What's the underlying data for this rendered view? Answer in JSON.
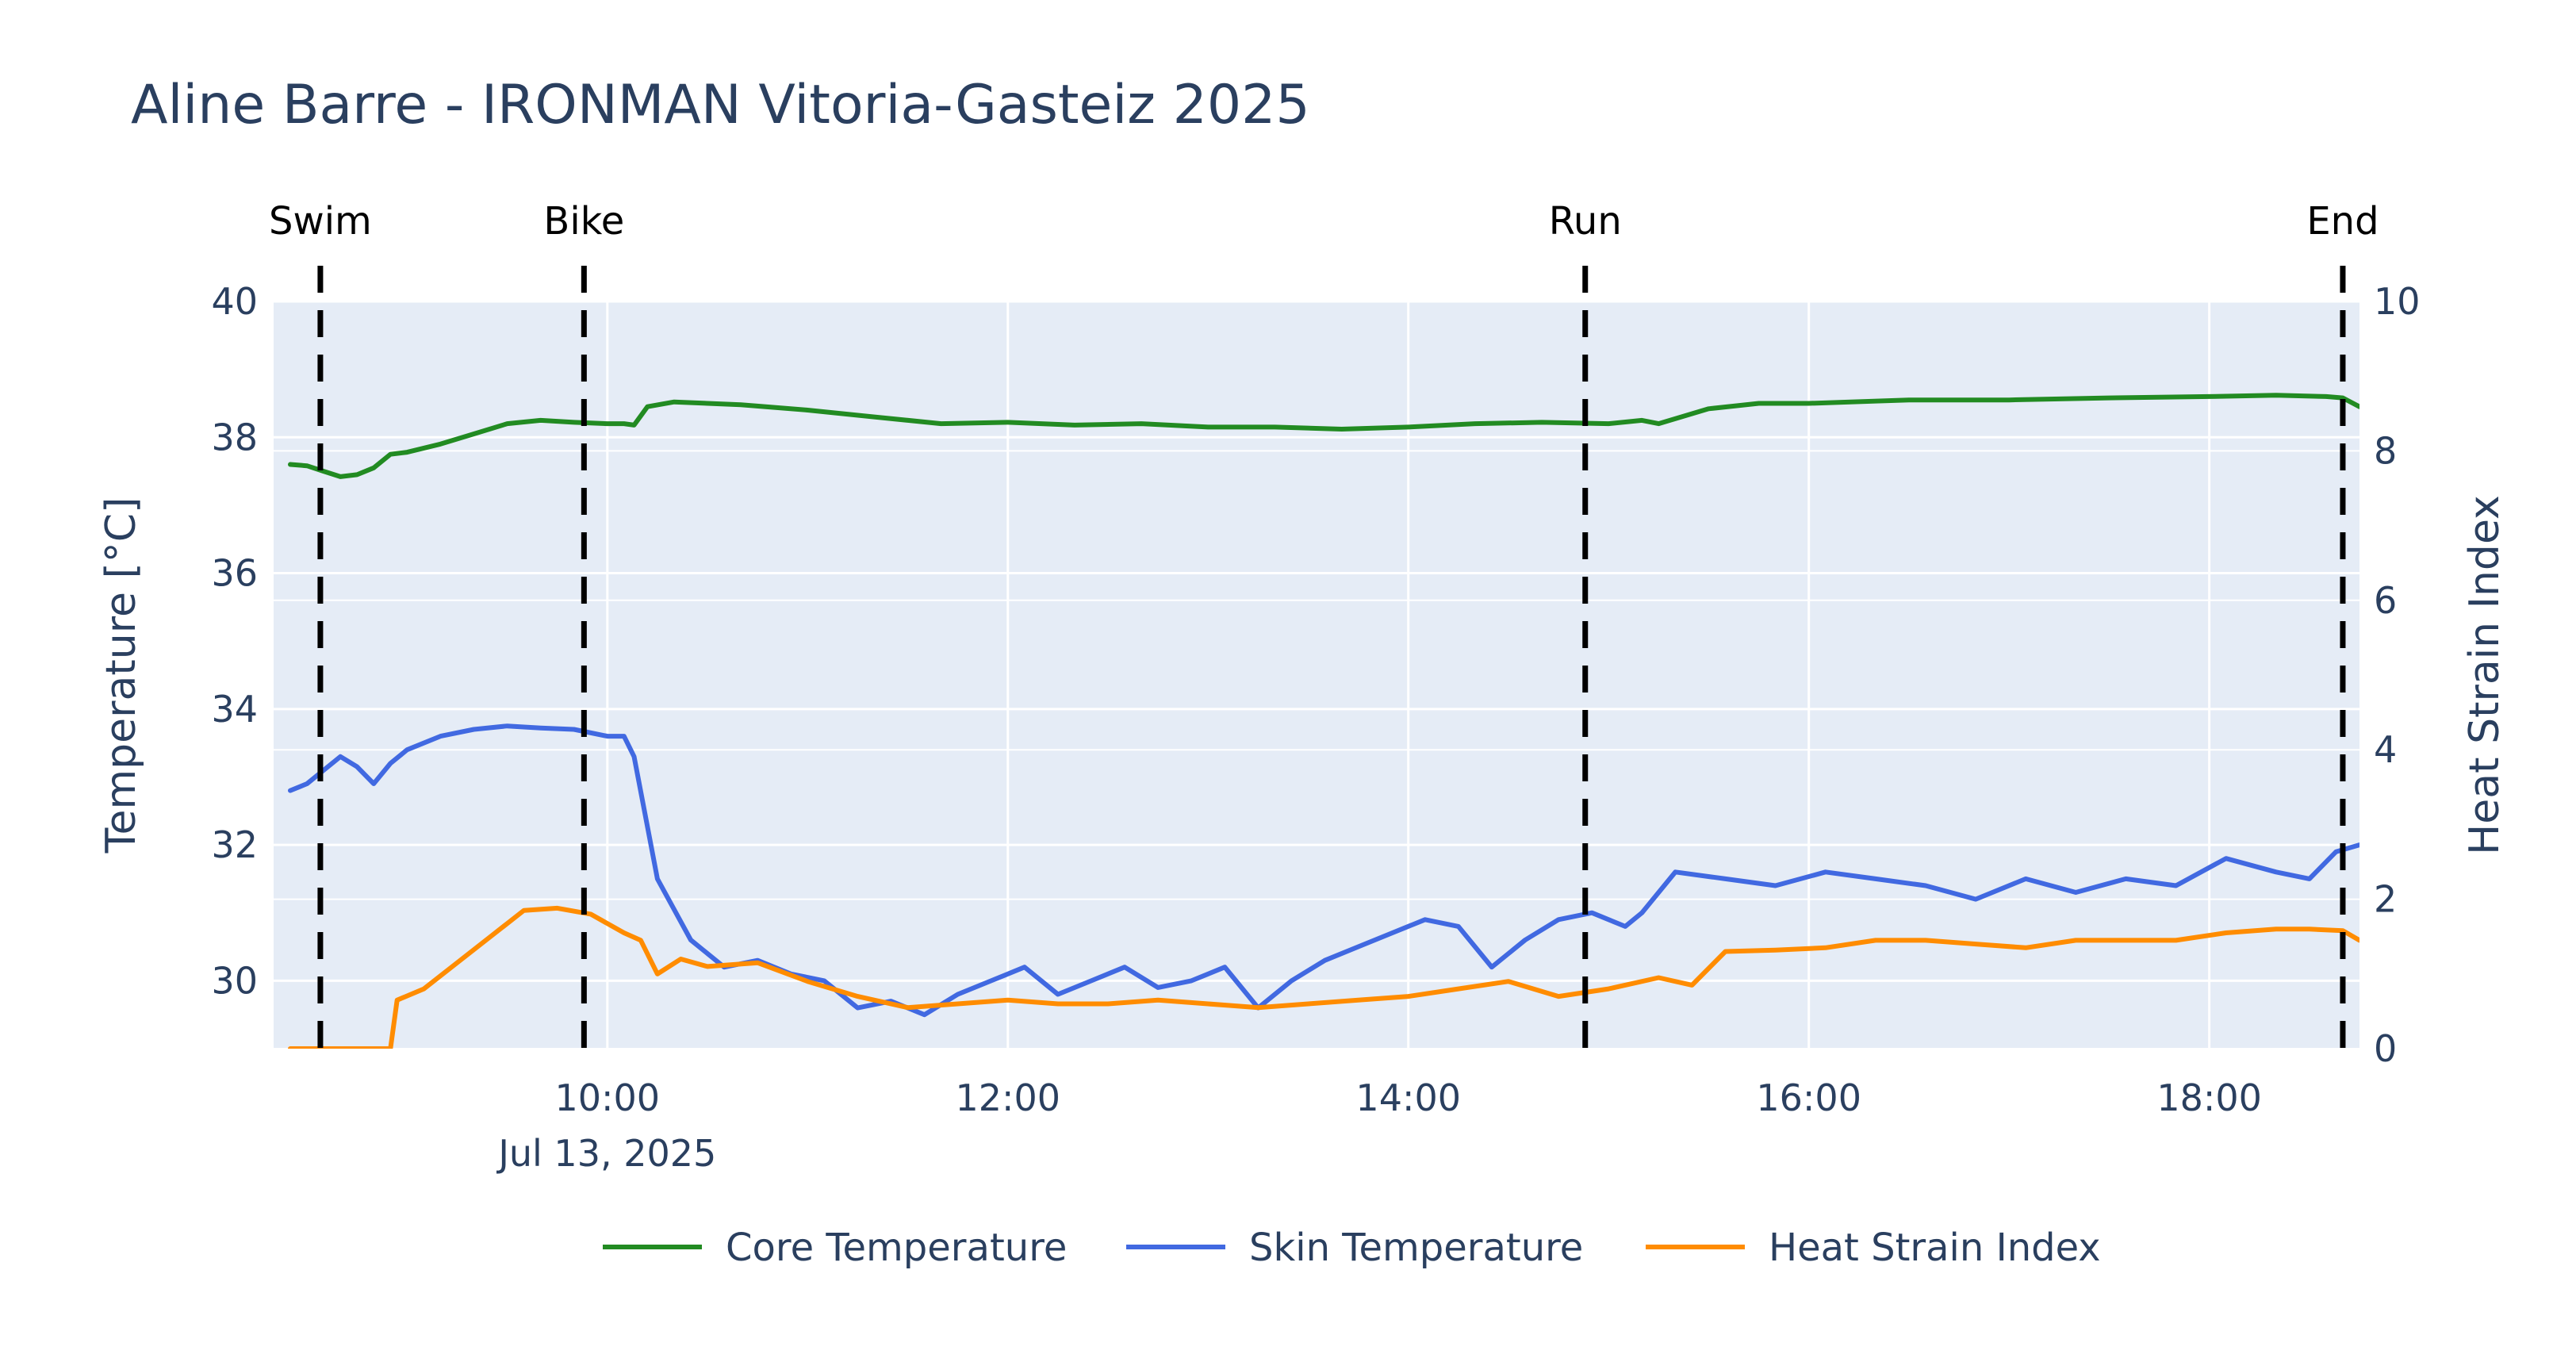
{
  "chart_data": {
    "type": "line",
    "title": "Aline Barre - IRONMAN Vitoria-Gasteiz 2025",
    "xlabel": "",
    "ylabel": "Temperature [°C]",
    "y2label": "Heat Strain Index",
    "x_range": [
      "2025-07-13 08:20",
      "2025-07-13 18:45"
    ],
    "x_ticks": [
      {
        "x": "2025-07-13 10:00",
        "label": "10:00",
        "sublabel": "Jul 13, 2025"
      },
      {
        "x": "2025-07-13 12:00",
        "label": "12:00",
        "sublabel": ""
      },
      {
        "x": "2025-07-13 14:00",
        "label": "14:00",
        "sublabel": ""
      },
      {
        "x": "2025-07-13 16:00",
        "label": "16:00",
        "sublabel": ""
      },
      {
        "x": "2025-07-13 18:00",
        "label": "18:00",
        "sublabel": ""
      }
    ],
    "ylim": [
      29,
      40
    ],
    "y_ticks": [
      30,
      32,
      34,
      36,
      38,
      40
    ],
    "y2lim": [
      0,
      10
    ],
    "y2_ticks": [
      0,
      2,
      4,
      6,
      8,
      10
    ],
    "grid": true,
    "legend_placement": "bottom-center",
    "events": [
      {
        "label": "Swim",
        "x": "2025-07-13 08:34"
      },
      {
        "label": "Bike",
        "x": "2025-07-13 09:53"
      },
      {
        "label": "Run",
        "x": "2025-07-13 14:53"
      },
      {
        "label": "End",
        "x": "2025-07-13 18:40"
      }
    ],
    "series": [
      {
        "name": "Core Temperature",
        "axis": "y",
        "color": "#228b22",
        "points": [
          [
            "2025-07-13 08:25",
            37.6
          ],
          [
            "2025-07-13 08:30",
            37.58
          ],
          [
            "2025-07-13 08:35",
            37.5
          ],
          [
            "2025-07-13 08:40",
            37.42
          ],
          [
            "2025-07-13 08:45",
            37.45
          ],
          [
            "2025-07-13 08:50",
            37.55
          ],
          [
            "2025-07-13 08:55",
            37.75
          ],
          [
            "2025-07-13 09:00",
            37.78
          ],
          [
            "2025-07-13 09:10",
            37.9
          ],
          [
            "2025-07-13 09:20",
            38.05
          ],
          [
            "2025-07-13 09:30",
            38.2
          ],
          [
            "2025-07-13 09:40",
            38.25
          ],
          [
            "2025-07-13 09:50",
            38.22
          ],
          [
            "2025-07-13 10:00",
            38.2
          ],
          [
            "2025-07-13 10:05",
            38.2
          ],
          [
            "2025-07-13 10:08",
            38.18
          ],
          [
            "2025-07-13 10:12",
            38.45
          ],
          [
            "2025-07-13 10:20",
            38.52
          ],
          [
            "2025-07-13 10:40",
            38.48
          ],
          [
            "2025-07-13 11:00",
            38.4
          ],
          [
            "2025-07-13 11:20",
            38.3
          ],
          [
            "2025-07-13 11:40",
            38.2
          ],
          [
            "2025-07-13 12:00",
            38.22
          ],
          [
            "2025-07-13 12:20",
            38.18
          ],
          [
            "2025-07-13 12:40",
            38.2
          ],
          [
            "2025-07-13 13:00",
            38.15
          ],
          [
            "2025-07-13 13:20",
            38.15
          ],
          [
            "2025-07-13 13:40",
            38.12
          ],
          [
            "2025-07-13 14:00",
            38.15
          ],
          [
            "2025-07-13 14:20",
            38.2
          ],
          [
            "2025-07-13 14:40",
            38.22
          ],
          [
            "2025-07-13 15:00",
            38.2
          ],
          [
            "2025-07-13 15:10",
            38.25
          ],
          [
            "2025-07-13 15:15",
            38.2
          ],
          [
            "2025-07-13 15:30",
            38.42
          ],
          [
            "2025-07-13 15:45",
            38.5
          ],
          [
            "2025-07-13 16:00",
            38.5
          ],
          [
            "2025-07-13 16:30",
            38.55
          ],
          [
            "2025-07-13 17:00",
            38.55
          ],
          [
            "2025-07-13 17:30",
            38.58
          ],
          [
            "2025-07-13 18:00",
            38.6
          ],
          [
            "2025-07-13 18:20",
            38.62
          ],
          [
            "2025-07-13 18:35",
            38.6
          ],
          [
            "2025-07-13 18:40",
            38.58
          ],
          [
            "2025-07-13 18:45",
            38.45
          ]
        ]
      },
      {
        "name": "Skin Temperature",
        "axis": "y",
        "color": "#4169e1",
        "points": [
          [
            "2025-07-13 08:25",
            32.8
          ],
          [
            "2025-07-13 08:30",
            32.9
          ],
          [
            "2025-07-13 08:35",
            33.1
          ],
          [
            "2025-07-13 08:40",
            33.3
          ],
          [
            "2025-07-13 08:45",
            33.15
          ],
          [
            "2025-07-13 08:50",
            32.9
          ],
          [
            "2025-07-13 08:55",
            33.2
          ],
          [
            "2025-07-13 09:00",
            33.4
          ],
          [
            "2025-07-13 09:10",
            33.6
          ],
          [
            "2025-07-13 09:20",
            33.7
          ],
          [
            "2025-07-13 09:30",
            33.75
          ],
          [
            "2025-07-13 09:40",
            33.72
          ],
          [
            "2025-07-13 09:50",
            33.7
          ],
          [
            "2025-07-13 10:00",
            33.6
          ],
          [
            "2025-07-13 10:05",
            33.6
          ],
          [
            "2025-07-13 10:08",
            33.3
          ],
          [
            "2025-07-13 10:15",
            31.5
          ],
          [
            "2025-07-13 10:25",
            30.6
          ],
          [
            "2025-07-13 10:35",
            30.2
          ],
          [
            "2025-07-13 10:45",
            30.3
          ],
          [
            "2025-07-13 10:55",
            30.1
          ],
          [
            "2025-07-13 11:05",
            30.0
          ],
          [
            "2025-07-13 11:15",
            29.6
          ],
          [
            "2025-07-13 11:25",
            29.7
          ],
          [
            "2025-07-13 11:35",
            29.5
          ],
          [
            "2025-07-13 11:45",
            29.8
          ],
          [
            "2025-07-13 11:55",
            30.0
          ],
          [
            "2025-07-13 12:05",
            30.2
          ],
          [
            "2025-07-13 12:15",
            29.8
          ],
          [
            "2025-07-13 12:25",
            30.0
          ],
          [
            "2025-07-13 12:35",
            30.2
          ],
          [
            "2025-07-13 12:45",
            29.9
          ],
          [
            "2025-07-13 12:55",
            30.0
          ],
          [
            "2025-07-13 13:05",
            30.2
          ],
          [
            "2025-07-13 13:15",
            29.6
          ],
          [
            "2025-07-13 13:25",
            30.0
          ],
          [
            "2025-07-13 13:35",
            30.3
          ],
          [
            "2025-07-13 13:45",
            30.5
          ],
          [
            "2025-07-13 13:55",
            30.7
          ],
          [
            "2025-07-13 14:05",
            30.9
          ],
          [
            "2025-07-13 14:15",
            30.8
          ],
          [
            "2025-07-13 14:25",
            30.2
          ],
          [
            "2025-07-13 14:35",
            30.6
          ],
          [
            "2025-07-13 14:45",
            30.9
          ],
          [
            "2025-07-13 14:55",
            31.0
          ],
          [
            "2025-07-13 15:05",
            30.8
          ],
          [
            "2025-07-13 15:10",
            31.0
          ],
          [
            "2025-07-13 15:20",
            31.6
          ],
          [
            "2025-07-13 15:35",
            31.5
          ],
          [
            "2025-07-13 15:50",
            31.4
          ],
          [
            "2025-07-13 16:05",
            31.6
          ],
          [
            "2025-07-13 16:20",
            31.5
          ],
          [
            "2025-07-13 16:35",
            31.4
          ],
          [
            "2025-07-13 16:50",
            31.2
          ],
          [
            "2025-07-13 17:05",
            31.5
          ],
          [
            "2025-07-13 17:20",
            31.3
          ],
          [
            "2025-07-13 17:35",
            31.5
          ],
          [
            "2025-07-13 17:50",
            31.4
          ],
          [
            "2025-07-13 18:05",
            31.8
          ],
          [
            "2025-07-13 18:20",
            31.6
          ],
          [
            "2025-07-13 18:30",
            31.5
          ],
          [
            "2025-07-13 18:38",
            31.9
          ],
          [
            "2025-07-13 18:45",
            32.0
          ]
        ]
      },
      {
        "name": "Heat Strain Index",
        "axis": "y2",
        "color": "#ff8c00",
        "points": [
          [
            "2025-07-13 08:25",
            0.0
          ],
          [
            "2025-07-13 08:55",
            0.0
          ],
          [
            "2025-07-13 08:57",
            0.65
          ],
          [
            "2025-07-13 09:05",
            0.8
          ],
          [
            "2025-07-13 09:15",
            1.15
          ],
          [
            "2025-07-13 09:25",
            1.5
          ],
          [
            "2025-07-13 09:35",
            1.85
          ],
          [
            "2025-07-13 09:45",
            1.88
          ],
          [
            "2025-07-13 09:55",
            1.8
          ],
          [
            "2025-07-13 10:05",
            1.55
          ],
          [
            "2025-07-13 10:10",
            1.45
          ],
          [
            "2025-07-13 10:15",
            1.0
          ],
          [
            "2025-07-13 10:22",
            1.2
          ],
          [
            "2025-07-13 10:30",
            1.1
          ],
          [
            "2025-07-13 10:45",
            1.15
          ],
          [
            "2025-07-13 11:00",
            0.9
          ],
          [
            "2025-07-13 11:15",
            0.7
          ],
          [
            "2025-07-13 11:30",
            0.55
          ],
          [
            "2025-07-13 11:45",
            0.6
          ],
          [
            "2025-07-13 12:00",
            0.65
          ],
          [
            "2025-07-13 12:15",
            0.6
          ],
          [
            "2025-07-13 12:30",
            0.6
          ],
          [
            "2025-07-13 12:45",
            0.65
          ],
          [
            "2025-07-13 13:00",
            0.6
          ],
          [
            "2025-07-13 13:15",
            0.55
          ],
          [
            "2025-07-13 13:30",
            0.6
          ],
          [
            "2025-07-13 13:45",
            0.65
          ],
          [
            "2025-07-13 14:00",
            0.7
          ],
          [
            "2025-07-13 14:15",
            0.8
          ],
          [
            "2025-07-13 14:30",
            0.9
          ],
          [
            "2025-07-13 14:45",
            0.7
          ],
          [
            "2025-07-13 15:00",
            0.8
          ],
          [
            "2025-07-13 15:15",
            0.95
          ],
          [
            "2025-07-13 15:25",
            0.85
          ],
          [
            "2025-07-13 15:35",
            1.3
          ],
          [
            "2025-07-13 15:50",
            1.32
          ],
          [
            "2025-07-13 16:05",
            1.35
          ],
          [
            "2025-07-13 16:20",
            1.45
          ],
          [
            "2025-07-13 16:35",
            1.45
          ],
          [
            "2025-07-13 16:50",
            1.4
          ],
          [
            "2025-07-13 17:05",
            1.35
          ],
          [
            "2025-07-13 17:20",
            1.45
          ],
          [
            "2025-07-13 17:35",
            1.45
          ],
          [
            "2025-07-13 17:50",
            1.45
          ],
          [
            "2025-07-13 18:05",
            1.55
          ],
          [
            "2025-07-13 18:20",
            1.6
          ],
          [
            "2025-07-13 18:30",
            1.6
          ],
          [
            "2025-07-13 18:40",
            1.58
          ],
          [
            "2025-07-13 18:45",
            1.45
          ]
        ]
      }
    ]
  }
}
